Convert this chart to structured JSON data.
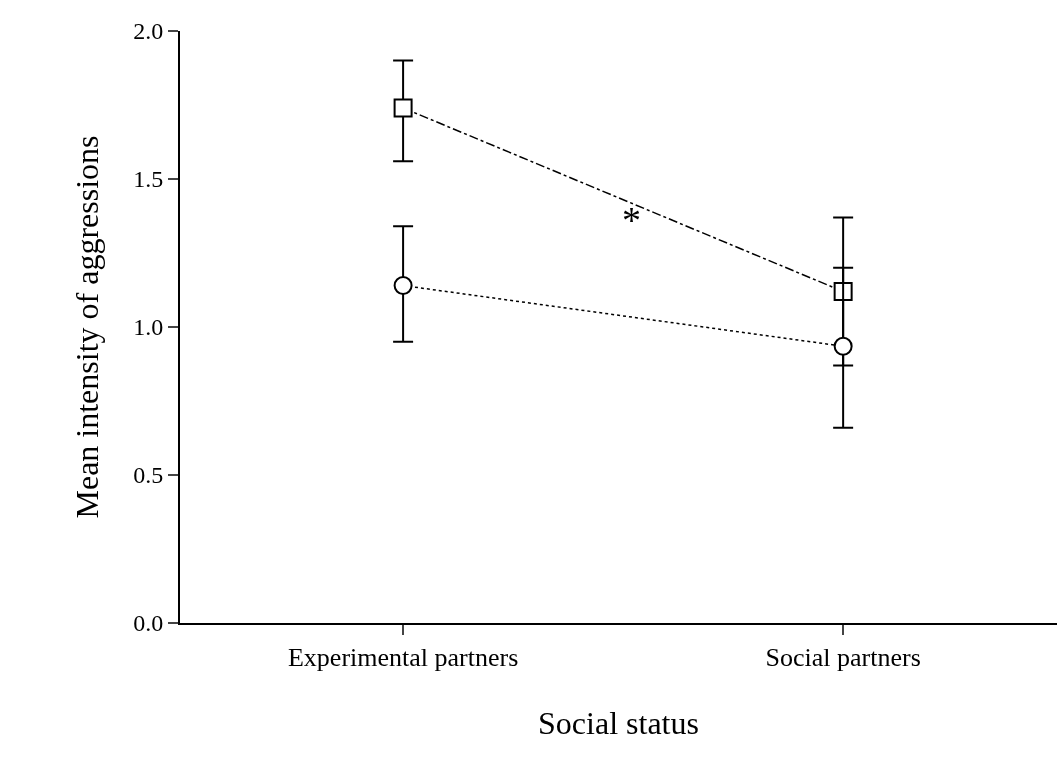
{
  "chart_data": {
    "type": "line",
    "xlabel": "Social status",
    "ylabel": "Mean intensity of aggressions",
    "categories": [
      "Experimental partners",
      "Social partners"
    ],
    "series": [
      {
        "color": "#000000",
        "values": [
          1.74,
          1.12
        ],
        "errors": [
          [
            1.56,
            1.9
          ],
          [
            0.87,
            1.37
          ]
        ],
        "marker": "square",
        "line_style": "dashdot"
      },
      {
        "color": "#000000",
        "values": [
          1.14,
          0.935
        ],
        "errors": [
          [
            0.95,
            1.34
          ],
          [
            0.66,
            1.2
          ]
        ],
        "marker": "circle",
        "line_style": "dotted"
      }
    ],
    "ylim": [
      0,
      2
    ],
    "yticks": [
      {
        "value": 0,
        "label": "0.0"
      },
      {
        "value": 0.5,
        "label": "0.5"
      },
      {
        "value": 1,
        "label": "1.0"
      },
      {
        "value": 1.5,
        "label": "1.5"
      },
      {
        "value": 2,
        "label": "2.0"
      }
    ],
    "grid": false,
    "annotations": [
      "*"
    ]
  }
}
